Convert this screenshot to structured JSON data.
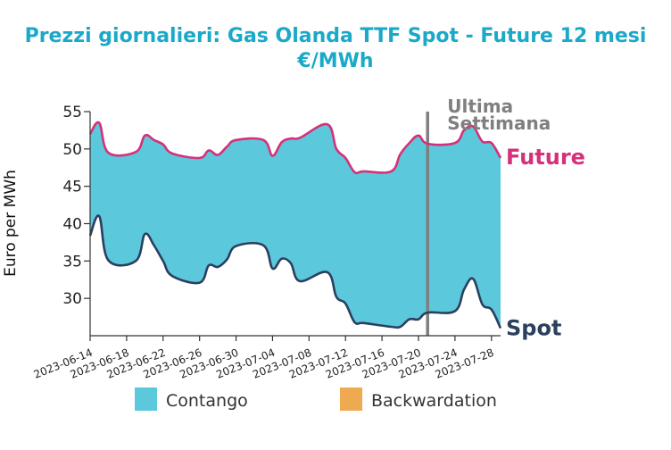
{
  "chart_data": {
    "type": "area",
    "title": "Prezzi giornalieri: Gas Olanda TTF Spot - Future 12 mesi",
    "subtitle": "€/MWh",
    "xlabel": "",
    "ylabel": "Euro per MWh",
    "ylim": [
      25,
      55
    ],
    "yticks": [
      30,
      35,
      40,
      45,
      50,
      55
    ],
    "x_start": "2023-06-14",
    "x_end": "2023-07-29",
    "xtick_labels": [
      "2023-06-14",
      "2023-06-18",
      "2023-06-22",
      "2023-06-26",
      "2023-06-30",
      "2023-07-04",
      "2023-07-08",
      "2023-07-12",
      "2023-07-16",
      "2023-07-20",
      "2023-07-24",
      "2023-07-28"
    ],
    "dates": [
      "2023-06-14",
      "2023-06-15",
      "2023-06-16",
      "2023-06-19",
      "2023-06-20",
      "2023-06-21",
      "2023-06-22",
      "2023-06-23",
      "2023-06-26",
      "2023-06-27",
      "2023-06-28",
      "2023-06-29",
      "2023-06-30",
      "2023-07-03",
      "2023-07-04",
      "2023-07-05",
      "2023-07-06",
      "2023-07-07",
      "2023-07-10",
      "2023-07-11",
      "2023-07-12",
      "2023-07-13",
      "2023-07-14",
      "2023-07-17",
      "2023-07-18",
      "2023-07-19",
      "2023-07-20",
      "2023-07-21",
      "2023-07-24",
      "2023-07-25",
      "2023-07-26",
      "2023-07-27",
      "2023-07-28",
      "2023-07-29"
    ],
    "series": [
      {
        "name": "Future",
        "color": "#d6307a",
        "label_color": "#d6307a",
        "values": [
          52.0,
          53.5,
          49.5,
          49.6,
          51.8,
          51.2,
          50.6,
          49.4,
          48.8,
          49.8,
          49.2,
          50.3,
          51.2,
          51.2,
          49.1,
          50.9,
          51.4,
          51.5,
          53.3,
          50.0,
          48.8,
          46.9,
          47.0,
          47.0,
          49.3,
          50.8,
          51.8,
          50.7,
          50.8,
          52.5,
          53.0,
          51.0,
          50.8,
          48.8
        ]
      },
      {
        "name": "Spot",
        "color": "#2b3f5e",
        "label_color": "#2b3f5e",
        "values": [
          38.4,
          41.0,
          35.1,
          35.0,
          38.6,
          37.1,
          35.0,
          33.0,
          32.1,
          34.4,
          34.2,
          35.2,
          37.0,
          37.1,
          34.0,
          35.3,
          34.7,
          32.3,
          33.5,
          30.2,
          29.3,
          26.8,
          26.7,
          26.2,
          26.2,
          27.2,
          27.2,
          28.1,
          28.3,
          31.2,
          32.6,
          29.2,
          28.5,
          26.0
        ]
      }
    ],
    "fill_colors": {
      "contango": "#5bc8dc",
      "backwardation": "#eeaa50"
    },
    "legend": [
      {
        "label": "Contango",
        "color": "#5bc8dc"
      },
      {
        "label": "Backwardation",
        "color": "#eeaa50"
      }
    ],
    "legend_placement": "bottom",
    "grid": false,
    "annotation": {
      "text_line1": "Ultima",
      "text_line2": "Settimana",
      "x": "2023-07-21",
      "color": "#7f7f7f"
    }
  }
}
